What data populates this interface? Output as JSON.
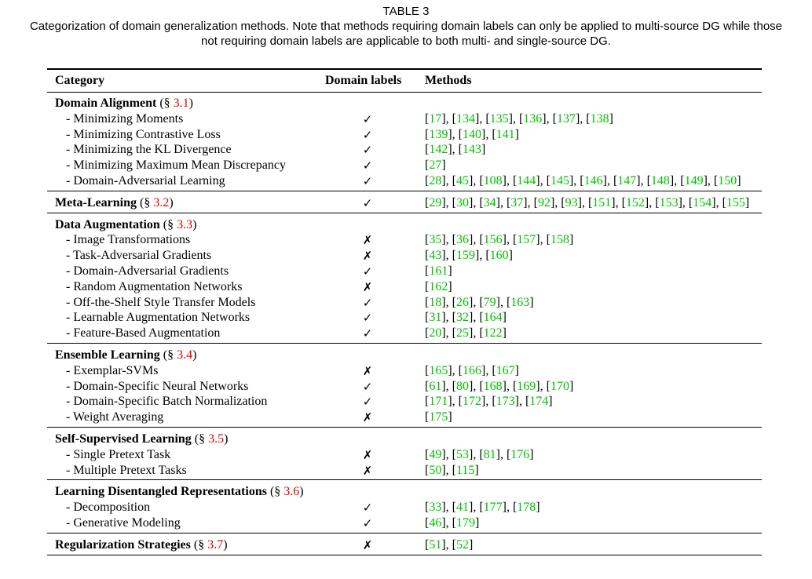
{
  "table": {
    "label": "TABLE 3",
    "caption_line1": "Categorization of domain generalization methods. Note that methods requiring domain labels can only be applied to multi-source DG while those",
    "caption_line2": "not requiring domain labels are applicable to both multi- and single-source DG.",
    "headers": {
      "category": "Category",
      "domain_labels": "Domain labels",
      "methods": "Methods"
    },
    "check_symbol": "✓",
    "cross_symbol": "✗",
    "colors": {
      "section_ref": "#e00000",
      "citation": "#00c000"
    },
    "groups": [
      {
        "name": "Domain Alignment",
        "section": "3.1",
        "items": [
          {
            "name": "Minimizing Moments",
            "labels": true,
            "refs": [
              "17",
              "134",
              "135",
              "136",
              "137",
              "138"
            ]
          },
          {
            "name": "Minimizing Contrastive Loss",
            "labels": true,
            "refs": [
              "139",
              "140",
              "141"
            ]
          },
          {
            "name": "Minimizing the KL Divergence",
            "labels": true,
            "refs": [
              "142",
              "143"
            ]
          },
          {
            "name": "Minimizing Maximum Mean Discrepancy",
            "labels": true,
            "refs": [
              "27"
            ]
          },
          {
            "name": "Domain-Adversarial Learning",
            "labels": true,
            "refs": [
              "28",
              "45",
              "108",
              "144",
              "145",
              "146",
              "147",
              "148",
              "149",
              "150"
            ]
          }
        ]
      },
      {
        "name": "Meta-Learning",
        "section": "3.2",
        "labels": true,
        "refs": [
          "29",
          "30",
          "34",
          "37",
          "92",
          "93",
          "151",
          "152",
          "153",
          "154",
          "155"
        ]
      },
      {
        "name": "Data Augmentation",
        "section": "3.3",
        "items": [
          {
            "name": "Image Transformations",
            "labels": false,
            "refs": [
              "35",
              "36",
              "156",
              "157",
              "158"
            ]
          },
          {
            "name": "Task-Adversarial Gradients",
            "labels": false,
            "refs": [
              "43",
              "159",
              "160"
            ]
          },
          {
            "name": "Domain-Adversarial Gradients",
            "labels": true,
            "refs": [
              "161"
            ]
          },
          {
            "name": "Random Augmentation Networks",
            "labels": false,
            "refs": [
              "162"
            ]
          },
          {
            "name": "Off-the-Shelf Style Transfer Models",
            "labels": true,
            "refs": [
              "18",
              "26",
              "79",
              "163"
            ]
          },
          {
            "name": "Learnable Augmentation Networks",
            "labels": true,
            "refs": [
              "31",
              "32",
              "164"
            ]
          },
          {
            "name": "Feature-Based Augmentation",
            "labels": true,
            "refs": [
              "20",
              "25",
              "122"
            ]
          }
        ]
      },
      {
        "name": "Ensemble Learning",
        "section": "3.4",
        "items": [
          {
            "name": "Exemplar-SVMs",
            "labels": false,
            "refs": [
              "165",
              "166",
              "167"
            ]
          },
          {
            "name": "Domain-Specific Neural Networks",
            "labels": true,
            "refs": [
              "61",
              "80",
              "168",
              "169",
              "170"
            ]
          },
          {
            "name": "Domain-Specific Batch Normalization",
            "labels": true,
            "refs": [
              "171",
              "172",
              "173",
              "174"
            ]
          },
          {
            "name": "Weight Averaging",
            "labels": false,
            "refs": [
              "175"
            ]
          }
        ]
      },
      {
        "name": "Self-Supervised Learning",
        "section": "3.5",
        "items": [
          {
            "name": "Single Pretext Task",
            "labels": false,
            "refs": [
              "49",
              "53",
              "81",
              "176"
            ]
          },
          {
            "name": "Multiple Pretext Tasks",
            "labels": false,
            "refs": [
              "50",
              "115"
            ]
          }
        ]
      },
      {
        "name": "Learning Disentangled Representations",
        "section": "3.6",
        "items": [
          {
            "name": "Decomposition",
            "labels": true,
            "refs": [
              "33",
              "41",
              "177",
              "178"
            ]
          },
          {
            "name": "Generative Modeling",
            "labels": true,
            "refs": [
              "46",
              "179"
            ]
          }
        ]
      },
      {
        "name": "Regularization Strategies",
        "section": "3.7",
        "labels": false,
        "refs": [
          "51",
          "52"
        ]
      }
    ]
  }
}
